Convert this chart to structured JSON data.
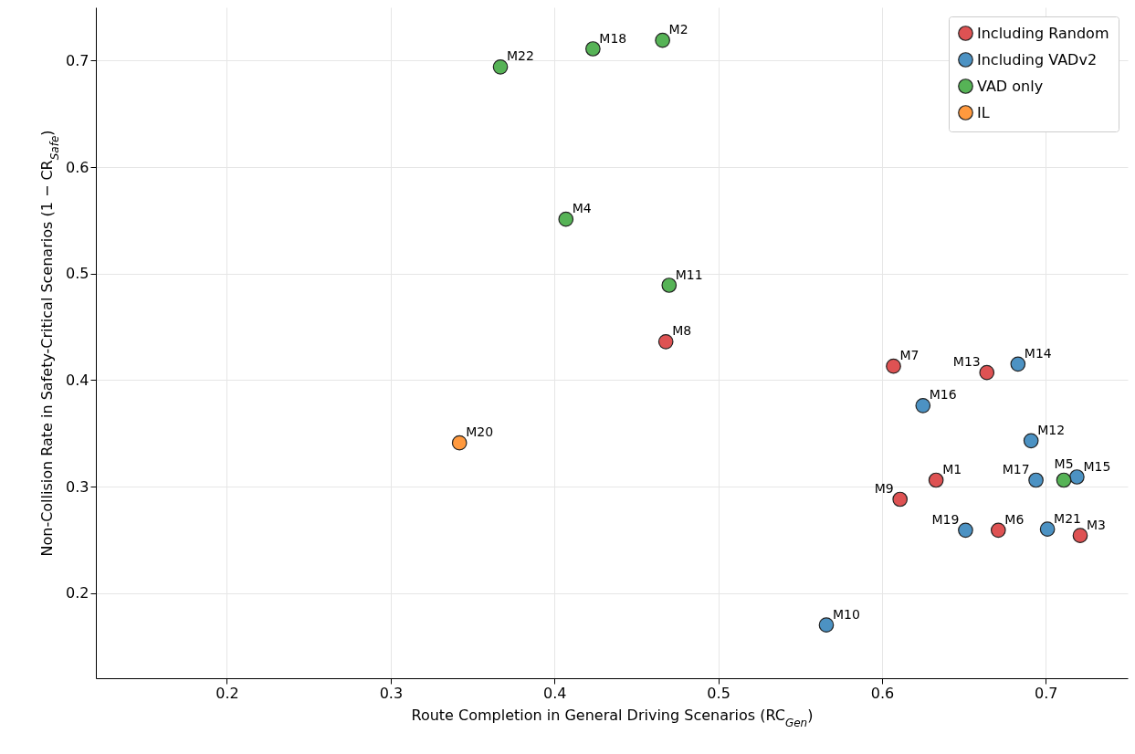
{
  "chart_data": {
    "type": "scatter",
    "xlabel": "Route Completion in General Driving Scenarios (RC$_{Gen}$)",
    "ylabel": "Non-Collision Rate in Safety-Critical Scenarios (1 − CR$_{Safe}$)",
    "xlim": [
      0.12,
      0.75
    ],
    "ylim": [
      0.12,
      0.75
    ],
    "xticks": [
      0.2,
      0.3,
      0.4,
      0.5,
      0.6,
      0.7
    ],
    "yticks": [
      0.2,
      0.3,
      0.4,
      0.5,
      0.6,
      0.7
    ],
    "grid": true,
    "legend": "top right",
    "marker": "circle",
    "series": [
      {
        "name": "Including Random",
        "color": "#de5253",
        "x": [
          0.468,
          0.607,
          0.664,
          0.633,
          0.611,
          0.671,
          0.721
        ],
        "values": [
          0.436,
          0.413,
          0.407,
          0.306,
          0.288,
          0.259,
          0.254
        ]
      },
      {
        "name": "Including VADv2",
        "color": "#4c92c3",
        "x": [
          0.683,
          0.625,
          0.691,
          0.694,
          0.719,
          0.651,
          0.701,
          0.566
        ],
        "values": [
          0.415,
          0.376,
          0.343,
          0.306,
          0.309,
          0.259,
          0.26,
          0.17
        ]
      },
      {
        "name": "VAD only",
        "color": "#56b356",
        "x": [
          0.367,
          0.4235,
          0.466,
          0.407,
          0.47,
          0.711
        ],
        "values": [
          0.694,
          0.711,
          0.719,
          0.551,
          0.489,
          0.306
        ]
      },
      {
        "name": "IL",
        "color": "#ff993e",
        "x": [
          0.342
        ],
        "values": [
          0.341
        ]
      }
    ],
    "annotations": [
      {
        "text": "M8",
        "x": 0.468,
        "y": 0.436
      },
      {
        "text": "M7",
        "x": 0.607,
        "y": 0.413
      },
      {
        "text": "M13",
        "x": 0.664,
        "y": 0.407
      },
      {
        "text": "M1",
        "x": 0.633,
        "y": 0.306
      },
      {
        "text": "M9",
        "x": 0.611,
        "y": 0.288
      },
      {
        "text": "M6",
        "x": 0.671,
        "y": 0.259
      },
      {
        "text": "M3",
        "x": 0.721,
        "y": 0.254
      },
      {
        "text": "M14",
        "x": 0.683,
        "y": 0.415
      },
      {
        "text": "M16",
        "x": 0.625,
        "y": 0.376
      },
      {
        "text": "M12",
        "x": 0.691,
        "y": 0.343
      },
      {
        "text": "M17",
        "x": 0.694,
        "y": 0.306
      },
      {
        "text": "M15",
        "x": 0.719,
        "y": 0.309
      },
      {
        "text": "M19",
        "x": 0.651,
        "y": 0.259
      },
      {
        "text": "M21",
        "x": 0.701,
        "y": 0.26
      },
      {
        "text": "M10",
        "x": 0.566,
        "y": 0.17
      },
      {
        "text": "M22",
        "x": 0.367,
        "y": 0.694
      },
      {
        "text": "M18",
        "x": 0.4235,
        "y": 0.711
      },
      {
        "text": "M2",
        "x": 0.466,
        "y": 0.719
      },
      {
        "text": "M4",
        "x": 0.407,
        "y": 0.551
      },
      {
        "text": "M11",
        "x": 0.47,
        "y": 0.489
      },
      {
        "text": "M5",
        "x": 0.711,
        "y": 0.306
      },
      {
        "text": "M20",
        "x": 0.342,
        "y": 0.341
      }
    ]
  }
}
